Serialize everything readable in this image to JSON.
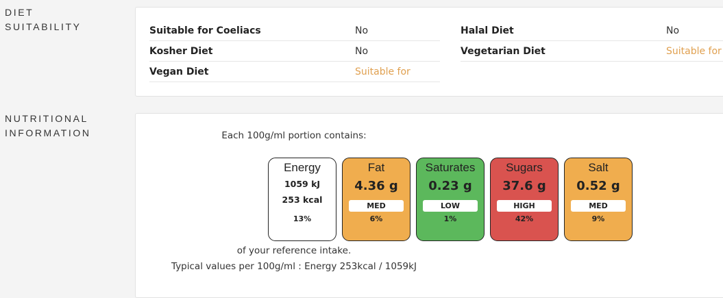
{
  "diet": {
    "section_label_line1": "DIET",
    "section_label_line2": "SUITABILITY",
    "rows_left": [
      {
        "label": "Suitable for Coeliacs",
        "value": "No",
        "positive": false
      },
      {
        "label": "Kosher Diet",
        "value": "No",
        "positive": false
      },
      {
        "label": "Vegan Diet",
        "value": "Suitable for",
        "positive": true
      }
    ],
    "rows_right": [
      {
        "label": "Halal Diet",
        "value": "No",
        "positive": false
      },
      {
        "label": "Vegetarian Diet",
        "value": "Suitable for",
        "positive": true
      }
    ],
    "positive_color": "#e0a050"
  },
  "nutrition": {
    "section_label_line1": "NUTRITIONAL",
    "section_label_line2": "INFORMATION",
    "portion_text": "Each 100g/ml portion contains:",
    "reference_text": "of your reference intake.",
    "typical_text": "Typical values per 100g/ml : Energy 253kcal / 1059kJ",
    "energy": {
      "name": "Energy",
      "kj": "1059 kJ",
      "kcal": "253 kcal",
      "percent": "13%",
      "color": "#ffffff"
    },
    "tiles": [
      {
        "name": "Fat",
        "amount": "4.36 g",
        "level": "MED",
        "percent": "6%",
        "color": "#f0ad4e"
      },
      {
        "name": "Saturates",
        "amount": "0.23 g",
        "level": "LOW",
        "percent": "1%",
        "color": "#5cb85c"
      },
      {
        "name": "Sugars",
        "amount": "37.6 g",
        "level": "HIGH",
        "percent": "42%",
        "color": "#d9534f"
      },
      {
        "name": "Salt",
        "amount": "0.52 g",
        "level": "MED",
        "percent": "9%",
        "color": "#f0ad4e"
      }
    ]
  }
}
